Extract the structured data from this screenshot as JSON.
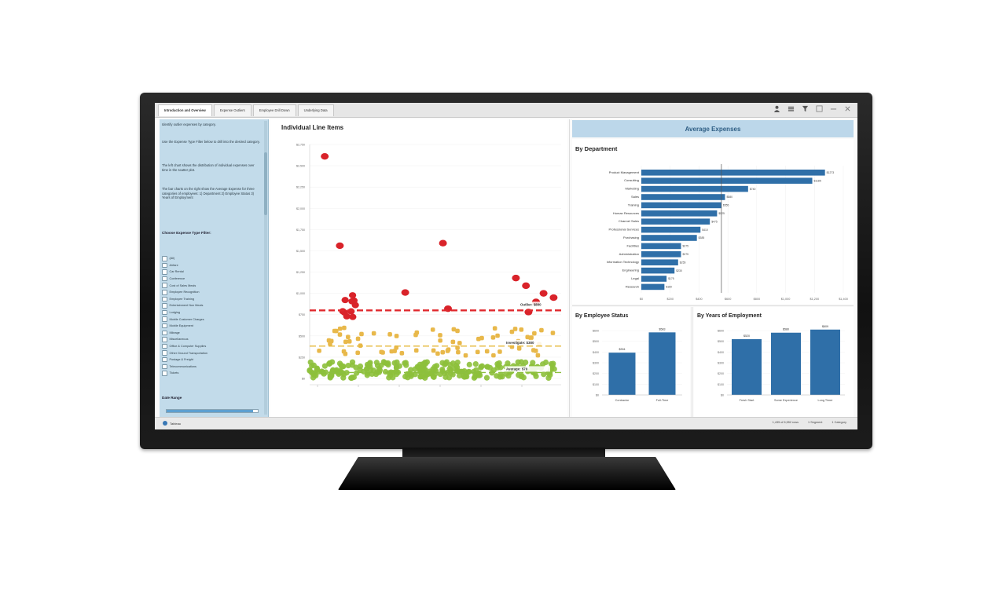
{
  "tabs": [
    {
      "label": "Introduction and Overview"
    },
    {
      "label": "Expense Outliers"
    },
    {
      "label": "Employee Drill Down"
    },
    {
      "label": "Underlying Data"
    }
  ],
  "toolbar": {
    "icons": [
      "user-icon",
      "menu-icon",
      "filter-icon",
      "minimize-icon",
      "restore-icon",
      "close-icon"
    ]
  },
  "sidebar": {
    "intro": [
      "Identify outlier expenses by category.",
      "Use the Expense Type Filter below to drill into the desired category.",
      "The left chart shows the distribution of individual expenses over time in the scatter plot.",
      "The bar charts on the right show the Average Expense for three categories of employees: 1) Department 2) Employee Status 3) Years of Employment"
    ],
    "filter_heading": "Choose Expense Type Filter:",
    "filter_items": [
      "(All)",
      "Airfare",
      "Car Rental",
      "Conference",
      "Cost of Sales Meals",
      "Employee Recognition",
      "Employee Training",
      "Entertainment Non Meals",
      "Lodging",
      "Mobile Customer Charges",
      "Mobile Equipment",
      "Mileage",
      "Miscellaneous",
      "Office & Computer Supplies",
      "Other Ground Transportation",
      "Postage & Freight",
      "Telecommunications",
      "Tickets"
    ],
    "date_heading": "Date Range",
    "date_fraction": 0.95
  },
  "status": {
    "left_label": "Tableau",
    "right": [
      "1,435 of 6,552 rows",
      "1 Segment",
      "1 Category"
    ]
  },
  "scatter": {
    "title": "Individual Line Items",
    "y_ticks": [
      "$0",
      "$250",
      "$500",
      "$750",
      "$1,000",
      "$1,250",
      "$1,500",
      "$1,750",
      "$2,000",
      "$2,250",
      "$2,500",
      "$2,750"
    ],
    "ref_lines": [
      {
        "label": "Outlier: $800",
        "value": 800,
        "color": "#e0282d"
      },
      {
        "label": "Investigate: $380",
        "value": 380,
        "color": "#e6b93c"
      },
      {
        "label": "Average: $70",
        "value": 70,
        "color": "#8cbf3f"
      }
    ],
    "colors": {
      "high": "#d9232a",
      "mid": "#e8b84a",
      "low": "#8dc03b"
    }
  },
  "avg_header": "Average Expenses",
  "dept": {
    "title": "By Department",
    "x_ticks": [
      "$0",
      "$200",
      "$400",
      "$600",
      "$800",
      "$1,000",
      "$1,200",
      "$1,400"
    ],
    "avg_line": 555,
    "bar_color": "#2f6fa8"
  },
  "status_chart": {
    "title": "By Employee Status",
    "y_ticks": [
      "$0",
      "$100",
      "$200",
      "$300",
      "$400",
      "$500",
      "$600"
    ]
  },
  "years_chart": {
    "title": "By Years of Employment",
    "y_ticks": [
      "$0",
      "$100",
      "$200",
      "$300",
      "$400",
      "$500",
      "$600"
    ]
  },
  "chart_data": [
    {
      "type": "scatter",
      "title": "Individual Line Items",
      "ylim": [
        0,
        2750
      ],
      "points_high": [
        [
          0.06,
          2610
        ],
        [
          0.12,
          1560
        ],
        [
          0.38,
          1010
        ],
        [
          0.53,
          1590
        ],
        [
          0.82,
          1180
        ],
        [
          0.86,
          1090
        ],
        [
          0.93,
          1000
        ],
        [
          0.87,
          780
        ],
        [
          0.9,
          900
        ],
        [
          0.97,
          950
        ],
        [
          0.55,
          820
        ]
      ],
      "points_mid_count": 70,
      "points_low_count": 260
    },
    {
      "type": "bar",
      "title": "By Department",
      "categories": [
        "Product Management",
        "Consulting",
        "Marketing",
        "Sales",
        "Training",
        "Human Resources",
        "Channel Sales",
        "Professional Services",
        "Purchasing",
        "Facilities",
        "Administration",
        "Information Technology",
        "Engineering",
        "Legal",
        "Research"
      ],
      "values": [
        1273,
        1185,
        740,
        580,
        555,
        525,
        475,
        410,
        385,
        275,
        275,
        255,
        230,
        175,
        160
      ]
    },
    {
      "type": "bar",
      "title": "By Employee Status",
      "categories": [
        "Contractor",
        "Full-Time"
      ],
      "values": [
        394,
        583
      ]
    },
    {
      "type": "bar",
      "title": "By Years of Employment",
      "categories": [
        "Fresh Start",
        "Some Experience",
        "Long Timer"
      ],
      "values": [
        520,
        580,
        609
      ]
    }
  ]
}
